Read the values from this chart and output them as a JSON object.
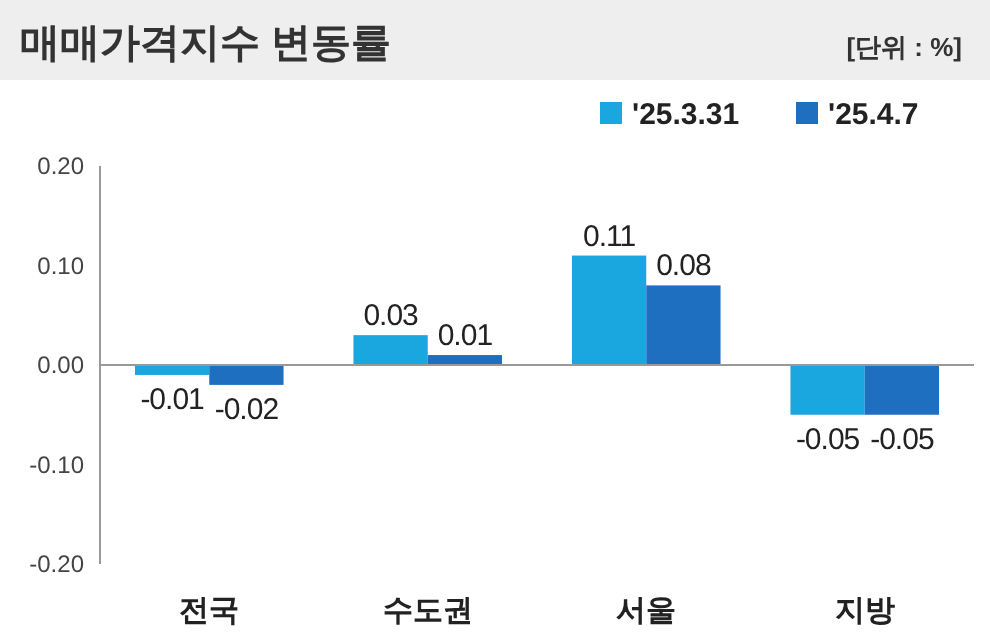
{
  "chart_data": {
    "type": "bar",
    "title": "매매가격지수 변동률",
    "annotations": [
      "[단위 : %]"
    ],
    "categories": [
      "전국",
      "수도권",
      "서울",
      "지방"
    ],
    "series": [
      {
        "name": "'25.3.31",
        "color": "#1aa7e0",
        "values": [
          -0.01,
          0.03,
          0.11,
          -0.05
        ]
      },
      {
        "name": "'25.4.7",
        "color": "#1f6fc1",
        "values": [
          -0.02,
          0.01,
          0.08,
          -0.05
        ]
      }
    ],
    "ylim": [
      -0.2,
      0.2
    ],
    "yticks": [
      {
        "value": -0.2,
        "label": "-0.20"
      },
      {
        "value": -0.1,
        "label": "-0.10"
      },
      {
        "value": 0,
        "label": "0.00"
      },
      {
        "value": 0.1,
        "label": "0.10"
      },
      {
        "value": 0.2,
        "label": "0.20"
      }
    ],
    "data_labels": true,
    "legend": "top right"
  }
}
